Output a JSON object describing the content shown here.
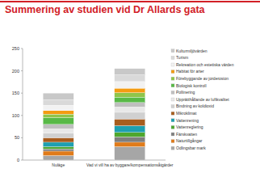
{
  "chart_data": {
    "type": "bar",
    "stacked": true,
    "title": "Summering av studien vid Dr Allards gata",
    "categories": [
      "Nuläge",
      "Vad vi vill ha av byggare/kompensationsåtgärder"
    ],
    "ylim": [
      0,
      250
    ],
    "yticks": [
      0,
      50,
      100,
      150,
      200,
      250
    ],
    "grid": false,
    "legend": "right",
    "series": [
      {
        "name": "Odlingsbar mark",
        "color": "#a6a6a6",
        "values": [
          10,
          30
        ]
      },
      {
        "name": "Naturtillgångar",
        "color": "#e07b1a",
        "values": [
          10,
          10
        ]
      },
      {
        "name": "Färskvatten",
        "color": "#7f7f7f",
        "values": [
          5,
          12
        ]
      },
      {
        "name": "Vattenreglering",
        "color": "#4ea72e",
        "values": [
          5,
          10
        ]
      },
      {
        "name": "Vattenrening",
        "color": "#1e9fb0",
        "values": [
          10,
          15
        ]
      },
      {
        "name": "Mikroklimat",
        "color": "#a85d1e",
        "values": [
          10,
          15
        ]
      },
      {
        "name": "Bindning av koldioxid",
        "color": "#d0d0d0",
        "values": [
          10,
          15
        ]
      },
      {
        "name": "Upprätthållande av luftkvalitet",
        "color": "#e8e8e8",
        "values": [
          10,
          12
        ]
      },
      {
        "name": "Pollinering",
        "color": "#bfbfbf",
        "values": [
          10,
          10
        ]
      },
      {
        "name": "Biologisk kontroll",
        "color": "#58b947",
        "values": [
          15,
          12
        ]
      },
      {
        "name": "Förebyggande av jorderosion",
        "color": "#8fc54a",
        "values": [
          8,
          10
        ]
      },
      {
        "name": "Habitat för arter",
        "color": "#f39c12",
        "values": [
          8,
          10
        ]
      },
      {
        "name": "Rekreation och estetiska värden",
        "color": "#f2f2f2",
        "values": [
          12,
          15
        ]
      },
      {
        "name": "Turism",
        "color": "#d9d9d9",
        "values": [
          12,
          15
        ]
      },
      {
        "name": "Kulturmiljövärden",
        "color": "#c8c8c8",
        "values": [
          15,
          14
        ]
      }
    ]
  }
}
